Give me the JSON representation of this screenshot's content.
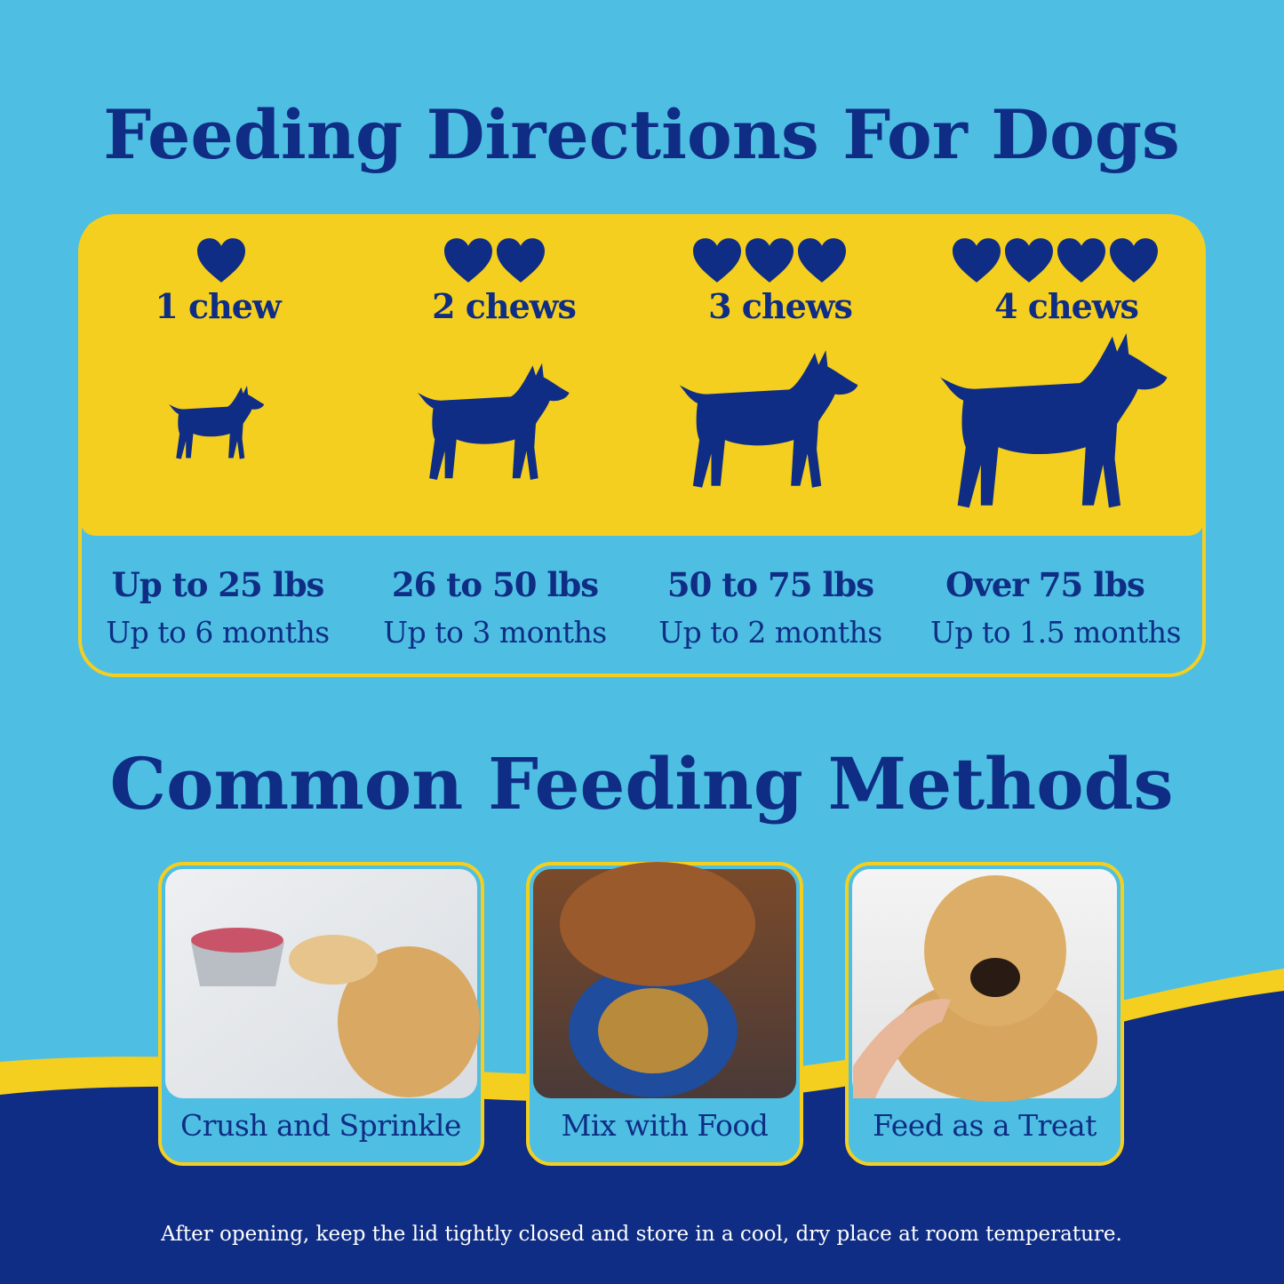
{
  "header": {
    "title": "Feeding Directions For Dogs"
  },
  "tiers": [
    {
      "dose": "1 chew",
      "weight": "Up to 25 lbs",
      "duration": "Up to 6 months"
    },
    {
      "dose": "2 chews",
      "weight": "26 to 50 lbs",
      "duration": "Up to 3 months"
    },
    {
      "dose": "3 chews",
      "weight": "50 to 75 lbs",
      "duration": "Up to 2 months"
    },
    {
      "dose": "4 chews",
      "weight": "Over 75 lbs",
      "duration": "Up to 1.5 months"
    }
  ],
  "methods": {
    "title": "Common Feeding Methods",
    "items": [
      "Crush and Sprinkle",
      "Mix with Food",
      "Feed as a Treat"
    ]
  },
  "footer": {
    "note": "After opening, keep the lid tightly closed and store in a cool, dry place at room temperature."
  }
}
